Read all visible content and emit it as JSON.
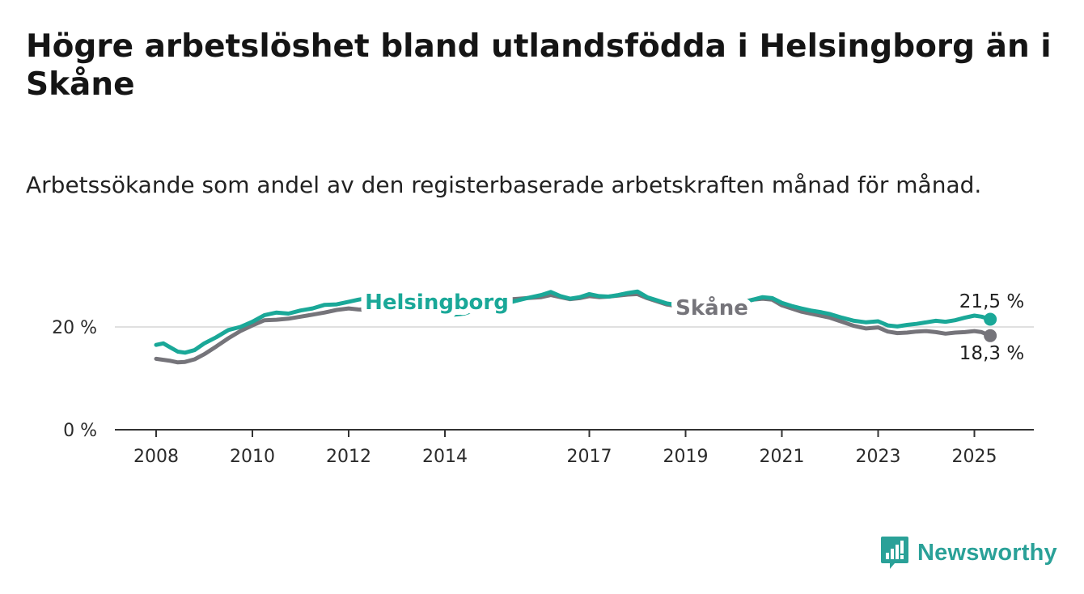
{
  "title": "Högre arbetslöshet bland utlandsfödda i Helsingborg än i Skåne",
  "subtitle": "Arbetssökande som andel av den registerbaserade arbetskraften månad för månad.",
  "brand": {
    "name": "Newsworthy",
    "color": "#2aa198",
    "icon": "chart-bubble-icon"
  },
  "chart_data": {
    "type": "line",
    "grid": true,
    "legend": "inline labels on lines",
    "ylim": [
      0,
      30
    ],
    "y_ticks": [
      {
        "value": 0,
        "label": "0 %"
      },
      {
        "value": 20,
        "label": "20 %"
      }
    ],
    "x_range": [
      2008.0,
      2025.33
    ],
    "x_ticks": [
      {
        "value": 2008,
        "label": "2008"
      },
      {
        "value": 2010,
        "label": "2010"
      },
      {
        "value": 2012,
        "label": "2012"
      },
      {
        "value": 2014,
        "label": "2014"
      },
      {
        "value": 2017,
        "label": "2017"
      },
      {
        "value": 2019,
        "label": "2019"
      },
      {
        "value": 2021,
        "label": "2021"
      },
      {
        "value": 2023,
        "label": "2023"
      },
      {
        "value": 2025,
        "label": "2025"
      }
    ],
    "series": [
      {
        "name": "Helsingborg",
        "color": "#1aa898",
        "end_label": "21,5 %",
        "points": [
          [
            2008.0,
            16.5
          ],
          [
            2008.15,
            16.8
          ],
          [
            2008.3,
            16.0
          ],
          [
            2008.45,
            15.2
          ],
          [
            2008.6,
            15.0
          ],
          [
            2008.8,
            15.5
          ],
          [
            2009.0,
            16.8
          ],
          [
            2009.25,
            18.0
          ],
          [
            2009.5,
            19.4
          ],
          [
            2009.75,
            20.0
          ],
          [
            2010.0,
            21.0
          ],
          [
            2010.25,
            22.3
          ],
          [
            2010.5,
            22.8
          ],
          [
            2010.75,
            22.6
          ],
          [
            2011.0,
            23.2
          ],
          [
            2011.25,
            23.6
          ],
          [
            2011.5,
            24.3
          ],
          [
            2011.75,
            24.4
          ],
          [
            2012.0,
            24.9
          ],
          [
            2012.2,
            25.3
          ],
          [
            2012.4,
            25.6
          ],
          [
            2012.6,
            25.4
          ],
          [
            2012.8,
            24.8
          ],
          [
            2013.0,
            24.2
          ],
          [
            2013.4,
            23.5
          ],
          [
            2013.8,
            22.8
          ],
          [
            2014.2,
            22.4
          ],
          [
            2014.4,
            22.6
          ],
          [
            2014.6,
            23.2
          ],
          [
            2015.0,
            24.0
          ],
          [
            2015.4,
            24.9
          ],
          [
            2015.7,
            25.6
          ],
          [
            2016.0,
            26.2
          ],
          [
            2016.2,
            26.8
          ],
          [
            2016.4,
            26.0
          ],
          [
            2016.6,
            25.5
          ],
          [
            2016.8,
            25.8
          ],
          [
            2017.0,
            26.4
          ],
          [
            2017.2,
            26.0
          ],
          [
            2017.4,
            25.9
          ],
          [
            2017.6,
            26.2
          ],
          [
            2017.8,
            26.6
          ],
          [
            2018.0,
            26.9
          ],
          [
            2018.2,
            25.8
          ],
          [
            2018.4,
            25.2
          ],
          [
            2018.6,
            24.6
          ],
          [
            2018.8,
            24.3
          ],
          [
            2019.0,
            24.2
          ],
          [
            2019.3,
            24.4
          ],
          [
            2019.6,
            24.6
          ],
          [
            2019.9,
            24.4
          ],
          [
            2020.2,
            24.8
          ],
          [
            2020.4,
            25.3
          ],
          [
            2020.6,
            25.8
          ],
          [
            2020.8,
            25.6
          ],
          [
            2021.0,
            24.7
          ],
          [
            2021.2,
            24.1
          ],
          [
            2021.4,
            23.6
          ],
          [
            2021.6,
            23.2
          ],
          [
            2021.8,
            22.9
          ],
          [
            2022.0,
            22.5
          ],
          [
            2022.25,
            21.8
          ],
          [
            2022.5,
            21.2
          ],
          [
            2022.75,
            20.9
          ],
          [
            2023.0,
            21.1
          ],
          [
            2023.2,
            20.3
          ],
          [
            2023.4,
            20.1
          ],
          [
            2023.6,
            20.4
          ],
          [
            2023.8,
            20.6
          ],
          [
            2024.0,
            20.9
          ],
          [
            2024.2,
            21.2
          ],
          [
            2024.4,
            21.0
          ],
          [
            2024.6,
            21.3
          ],
          [
            2024.8,
            21.8
          ],
          [
            2025.0,
            22.2
          ],
          [
            2025.15,
            22.0
          ],
          [
            2025.33,
            21.5
          ]
        ]
      },
      {
        "name": "Skåne",
        "color": "#75747a",
        "end_label": "18,3 %",
        "points": [
          [
            2008.0,
            13.8
          ],
          [
            2008.15,
            13.6
          ],
          [
            2008.3,
            13.4
          ],
          [
            2008.45,
            13.1
          ],
          [
            2008.6,
            13.2
          ],
          [
            2008.8,
            13.7
          ],
          [
            2009.0,
            14.7
          ],
          [
            2009.25,
            16.2
          ],
          [
            2009.5,
            17.8
          ],
          [
            2009.75,
            19.2
          ],
          [
            2010.0,
            20.3
          ],
          [
            2010.25,
            21.3
          ],
          [
            2010.5,
            21.4
          ],
          [
            2010.75,
            21.6
          ],
          [
            2011.0,
            22.0
          ],
          [
            2011.25,
            22.4
          ],
          [
            2011.5,
            22.8
          ],
          [
            2011.75,
            23.3
          ],
          [
            2012.0,
            23.6
          ],
          [
            2012.2,
            23.4
          ],
          [
            2012.4,
            23.3
          ],
          [
            2012.6,
            23.6
          ],
          [
            2012.8,
            23.5
          ],
          [
            2013.0,
            23.8
          ],
          [
            2013.4,
            24.2
          ],
          [
            2013.8,
            24.4
          ],
          [
            2014.2,
            24.6
          ],
          [
            2014.4,
            24.8
          ],
          [
            2014.6,
            25.0
          ],
          [
            2015.0,
            25.1
          ],
          [
            2015.4,
            25.4
          ],
          [
            2015.7,
            25.6
          ],
          [
            2016.0,
            25.8
          ],
          [
            2016.2,
            26.2
          ],
          [
            2016.4,
            25.8
          ],
          [
            2016.6,
            25.4
          ],
          [
            2016.8,
            25.6
          ],
          [
            2017.0,
            26.0
          ],
          [
            2017.2,
            25.8
          ],
          [
            2017.4,
            25.9
          ],
          [
            2017.6,
            26.1
          ],
          [
            2017.8,
            26.3
          ],
          [
            2018.0,
            26.4
          ],
          [
            2018.2,
            25.6
          ],
          [
            2018.4,
            25.0
          ],
          [
            2018.6,
            24.4
          ],
          [
            2018.8,
            24.1
          ],
          [
            2019.0,
            24.0
          ],
          [
            2019.3,
            24.1
          ],
          [
            2019.6,
            24.3
          ],
          [
            2019.9,
            24.6
          ],
          [
            2020.2,
            24.9
          ],
          [
            2020.4,
            25.3
          ],
          [
            2020.6,
            25.5
          ],
          [
            2020.8,
            25.3
          ],
          [
            2021.0,
            24.2
          ],
          [
            2021.2,
            23.6
          ],
          [
            2021.4,
            23.0
          ],
          [
            2021.6,
            22.6
          ],
          [
            2021.8,
            22.2
          ],
          [
            2022.0,
            21.8
          ],
          [
            2022.25,
            21.0
          ],
          [
            2022.5,
            20.2
          ],
          [
            2022.75,
            19.7
          ],
          [
            2023.0,
            19.9
          ],
          [
            2023.2,
            19.1
          ],
          [
            2023.4,
            18.8
          ],
          [
            2023.6,
            18.9
          ],
          [
            2023.8,
            19.1
          ],
          [
            2024.0,
            19.2
          ],
          [
            2024.2,
            19.0
          ],
          [
            2024.4,
            18.7
          ],
          [
            2024.6,
            18.9
          ],
          [
            2024.8,
            19.0
          ],
          [
            2025.0,
            19.2
          ],
          [
            2025.15,
            19.0
          ],
          [
            2025.33,
            18.3
          ]
        ]
      }
    ]
  }
}
